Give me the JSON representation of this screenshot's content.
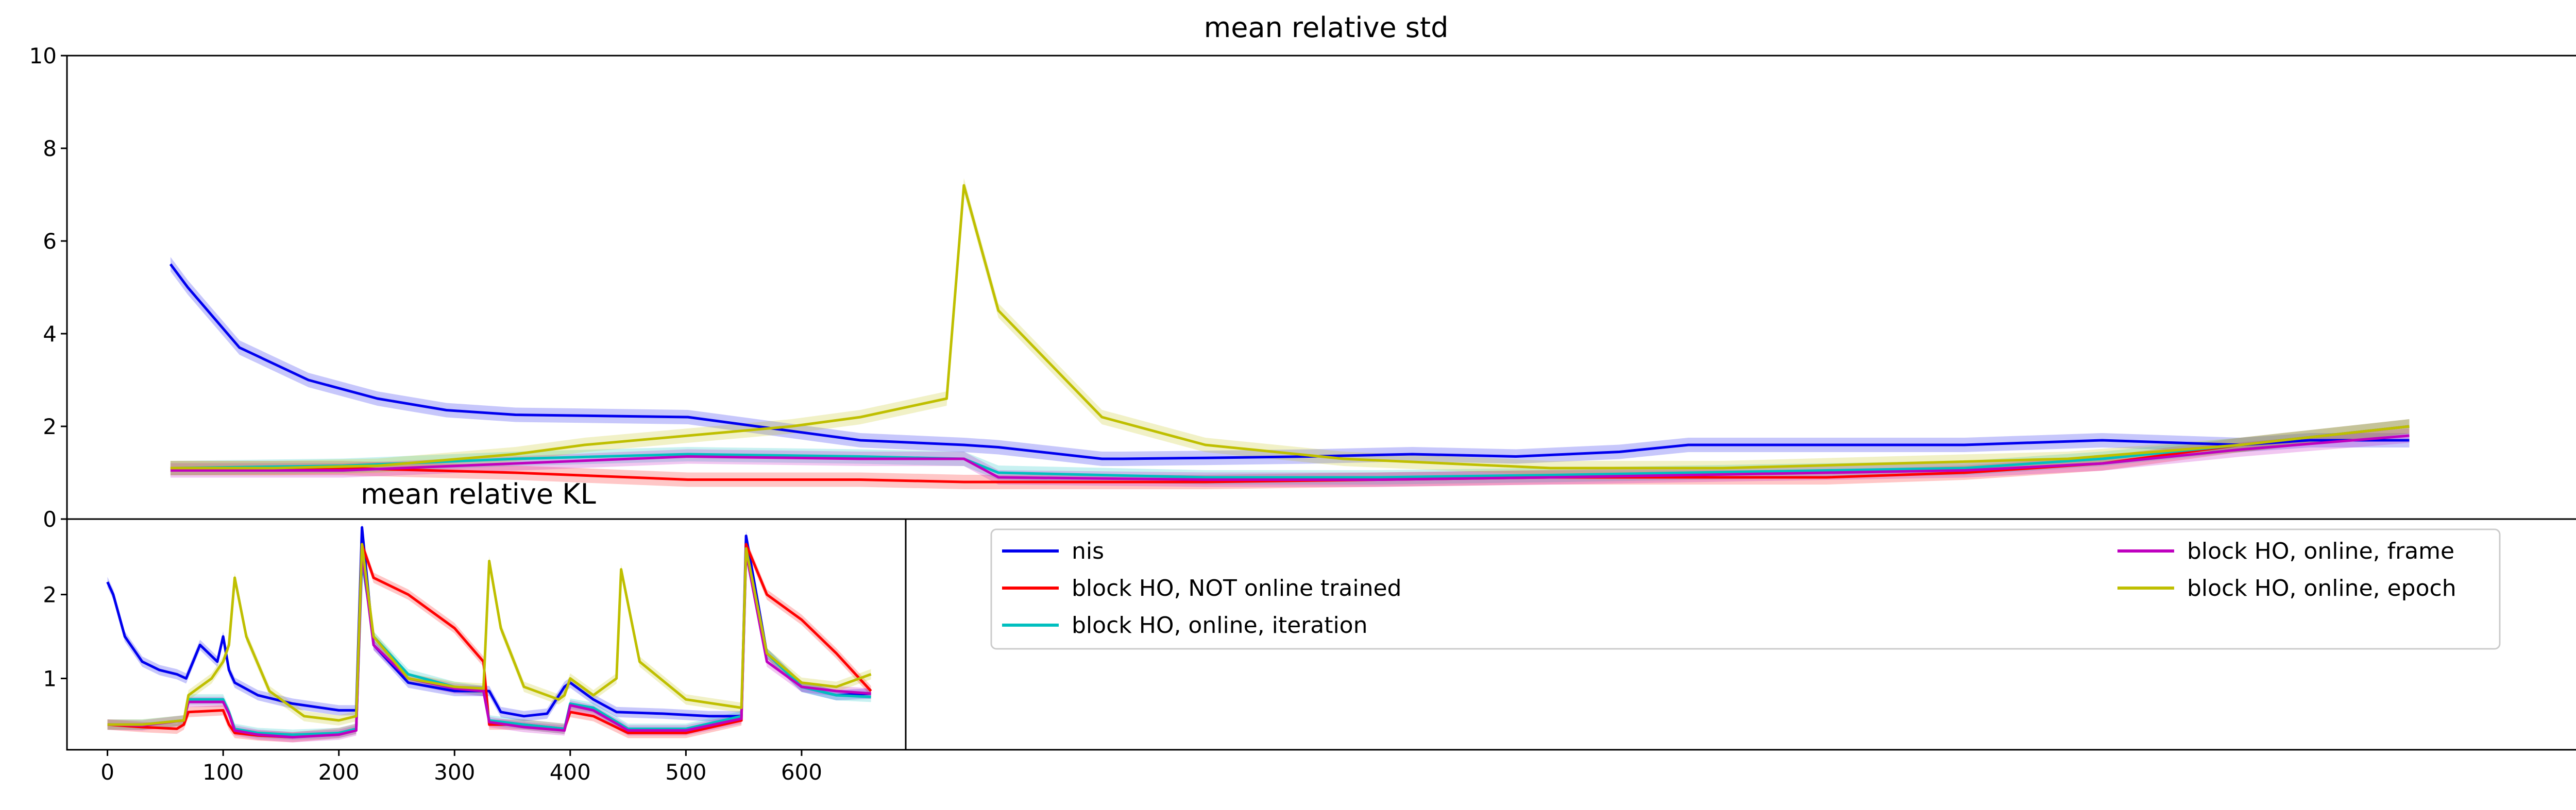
{
  "colors": {
    "nis": "#0000ee",
    "not_online": "#ff0000",
    "iteration": "#00bfbf",
    "frame": "#bf00bf",
    "epoch": "#bfbf00"
  },
  "chart_data": [
    {
      "type": "line",
      "title": "mean relative std",
      "xlabel": "",
      "ylabel": "",
      "xlim": [
        -30,
        700
      ],
      "ylim": [
        0,
        10
      ],
      "y_ticks": [
        "0",
        "2",
        "4",
        "6",
        "8",
        "10"
      ],
      "x_ticks": [],
      "grid": false,
      "shaded_bands": true,
      "series": [
        {
          "name": "nis",
          "color_key": "nis",
          "x": [
            0,
            5,
            20,
            40,
            60,
            80,
            100,
            150,
            200,
            230,
            240,
            270,
            276,
            300,
            330,
            360,
            390,
            405,
            420,
            440,
            480,
            520,
            560,
            600,
            620,
            649
          ],
          "y": [
            5.5,
            5.0,
            3.7,
            3.0,
            2.6,
            2.35,
            2.25,
            2.2,
            1.7,
            1.6,
            1.55,
            1.3,
            1.3,
            1.32,
            1.35,
            1.4,
            1.35,
            1.4,
            1.45,
            1.6,
            1.6,
            1.6,
            1.7,
            1.6,
            1.7,
            1.7
          ]
        },
        {
          "name": "block HO, NOT online trained",
          "color_key": "not_online",
          "x": [
            0,
            50,
            100,
            150,
            200,
            230,
            240,
            300,
            350,
            400,
            440,
            480,
            520,
            560,
            600,
            649
          ],
          "y": [
            1.1,
            1.1,
            1.0,
            0.85,
            0.85,
            0.8,
            0.8,
            0.8,
            0.85,
            0.9,
            0.9,
            0.9,
            1.0,
            1.2,
            1.6,
            2.0
          ]
        },
        {
          "name": "block HO, online, iteration",
          "color_key": "iteration",
          "x": [
            0,
            50,
            100,
            150,
            200,
            230,
            240,
            300,
            350,
            400,
            440,
            480,
            520,
            560,
            600,
            649
          ],
          "y": [
            1.1,
            1.15,
            1.3,
            1.4,
            1.35,
            1.3,
            1.0,
            0.9,
            0.9,
            0.95,
            1.0,
            1.05,
            1.1,
            1.3,
            1.6,
            2.0
          ]
        },
        {
          "name": "block HO, online, frame",
          "color_key": "frame",
          "x": [
            0,
            50,
            100,
            150,
            200,
            230,
            240,
            300,
            350,
            400,
            440,
            480,
            520,
            560,
            600,
            649
          ],
          "y": [
            1.05,
            1.05,
            1.2,
            1.35,
            1.3,
            1.3,
            0.9,
            0.85,
            0.85,
            0.9,
            0.95,
            1.0,
            1.05,
            1.2,
            1.5,
            1.8
          ]
        },
        {
          "name": "block HO, online, epoch",
          "color_key": "epoch",
          "x": [
            0,
            30,
            60,
            100,
            120,
            150,
            180,
            200,
            225,
            230,
            240,
            270,
            300,
            340,
            400,
            450,
            500,
            550,
            600,
            649
          ],
          "y": [
            1.1,
            1.1,
            1.15,
            1.4,
            1.6,
            1.8,
            2.0,
            2.2,
            2.6,
            7.2,
            4.5,
            2.2,
            1.6,
            1.3,
            1.1,
            1.1,
            1.2,
            1.3,
            1.6,
            2.0
          ]
        }
      ]
    },
    {
      "type": "line",
      "title": "mean relative KL",
      "xlabel": "",
      "ylabel": "",
      "xlim": [
        -35,
        690
      ],
      "ylim": [
        0.15,
        2.9
      ],
      "y_ticks": [
        "1",
        "2"
      ],
      "x_ticks": [
        "0",
        "100",
        "200",
        "300",
        "400",
        "500",
        "600"
      ],
      "grid": false,
      "shaded_bands": true,
      "series": [
        {
          "name": "nis",
          "color_key": "nis",
          "x": [
            0,
            5,
            15,
            30,
            45,
            60,
            68,
            80,
            95,
            100,
            105,
            110,
            130,
            160,
            200,
            215,
            220,
            230,
            260,
            300,
            330,
            340,
            360,
            380,
            395,
            400,
            420,
            440,
            480,
            520,
            548,
            552,
            570,
            600,
            630,
            660
          ],
          "y": [
            2.15,
            2.0,
            1.5,
            1.2,
            1.1,
            1.05,
            1.0,
            1.4,
            1.2,
            1.5,
            1.1,
            0.95,
            0.8,
            0.7,
            0.62,
            0.62,
            2.8,
            1.4,
            0.95,
            0.85,
            0.85,
            0.6,
            0.55,
            0.58,
            0.9,
            0.95,
            0.75,
            0.6,
            0.58,
            0.55,
            0.55,
            2.7,
            1.3,
            0.9,
            0.8,
            0.82
          ]
        },
        {
          "name": "block HO, NOT online trained",
          "color_key": "not_online",
          "x": [
            0,
            30,
            60,
            66,
            70,
            100,
            105,
            110,
            130,
            160,
            200,
            215,
            220,
            230,
            260,
            300,
            325,
            330,
            360,
            395,
            400,
            420,
            450,
            500,
            548,
            552,
            570,
            600,
            630,
            660
          ],
          "y": [
            0.45,
            0.42,
            0.4,
            0.45,
            0.6,
            0.62,
            0.45,
            0.35,
            0.32,
            0.3,
            0.35,
            0.4,
            2.6,
            2.2,
            2.0,
            1.6,
            1.2,
            0.45,
            0.45,
            0.4,
            0.6,
            0.55,
            0.35,
            0.35,
            0.5,
            2.6,
            2.0,
            1.7,
            1.3,
            0.85
          ]
        },
        {
          "name": "block HO, online, iteration",
          "color_key": "iteration",
          "x": [
            0,
            30,
            66,
            70,
            100,
            105,
            110,
            130,
            160,
            200,
            215,
            220,
            230,
            260,
            300,
            325,
            330,
            360,
            395,
            400,
            420,
            450,
            500,
            548,
            552,
            570,
            600,
            630,
            660
          ],
          "y": [
            0.45,
            0.45,
            0.5,
            0.75,
            0.75,
            0.6,
            0.4,
            0.35,
            0.33,
            0.35,
            0.4,
            2.4,
            1.5,
            1.05,
            0.9,
            0.85,
            0.5,
            0.45,
            0.4,
            0.7,
            0.65,
            0.4,
            0.4,
            0.55,
            2.5,
            1.3,
            0.9,
            0.8,
            0.78
          ]
        },
        {
          "name": "block HO, online, frame",
          "color_key": "frame",
          "x": [
            0,
            30,
            66,
            70,
            100,
            105,
            110,
            130,
            160,
            200,
            215,
            220,
            230,
            260,
            300,
            325,
            330,
            360,
            395,
            400,
            420,
            450,
            500,
            548,
            552,
            570,
            600,
            630,
            660
          ],
          "y": [
            0.45,
            0.44,
            0.5,
            0.72,
            0.72,
            0.58,
            0.38,
            0.33,
            0.3,
            0.33,
            0.38,
            2.5,
            1.4,
            1.0,
            0.88,
            0.85,
            0.48,
            0.42,
            0.38,
            0.68,
            0.62,
            0.38,
            0.38,
            0.52,
            2.5,
            1.2,
            0.9,
            0.85,
            0.82
          ]
        },
        {
          "name": "block HO, online, epoch",
          "color_key": "epoch",
          "x": [
            0,
            30,
            66,
            70,
            90,
            100,
            105,
            110,
            120,
            140,
            170,
            200,
            215,
            220,
            230,
            260,
            300,
            325,
            330,
            340,
            360,
            390,
            395,
            400,
            420,
            440,
            444,
            460,
            500,
            548,
            552,
            570,
            600,
            630,
            660
          ],
          "y": [
            0.45,
            0.45,
            0.5,
            0.8,
            1.0,
            1.2,
            1.4,
            2.2,
            1.5,
            0.85,
            0.55,
            0.5,
            0.55,
            2.6,
            1.5,
            1.0,
            0.9,
            0.88,
            2.4,
            1.6,
            0.9,
            0.75,
            0.8,
            1.0,
            0.8,
            1.0,
            2.3,
            1.2,
            0.75,
            0.65,
            2.55,
            1.3,
            0.95,
            0.9,
            1.05
          ]
        }
      ]
    }
  ],
  "legend": {
    "placement": "lower-right panel",
    "items": [
      {
        "label": "nis",
        "color_key": "nis"
      },
      {
        "label": "block HO, NOT online trained",
        "color_key": "not_online"
      },
      {
        "label": "block HO, online, iteration",
        "color_key": "iteration"
      },
      {
        "label": "block HO, online, frame",
        "color_key": "frame"
      },
      {
        "label": "block HO, online, epoch",
        "color_key": "epoch"
      }
    ]
  }
}
